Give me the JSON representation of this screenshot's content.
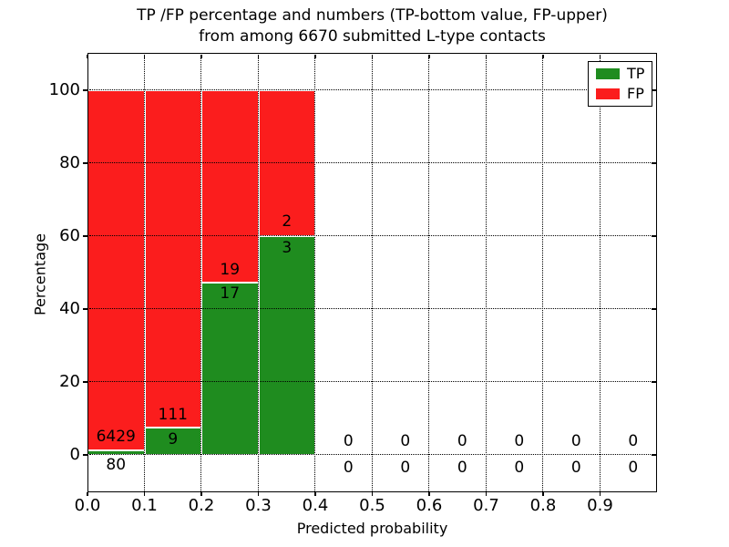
{
  "figure": {
    "title_line1": "TP /FP percentage and numbers (TP-bottom value, FP-upper)",
    "title_line2": "from among 6670 submitted L-type contacts"
  },
  "axes": {
    "xlabel": "Predicted probability",
    "ylabel": "Percentage",
    "x_tick_labels": [
      "0.0",
      "0.1",
      "0.2",
      "0.3",
      "0.4",
      "0.5",
      "0.6",
      "0.7",
      "0.8",
      "0.9"
    ],
    "y_tick_labels": [
      "0",
      "20",
      "40",
      "60",
      "80",
      "100"
    ],
    "y_tick_values": [
      0,
      20,
      40,
      60,
      80,
      100
    ]
  },
  "legend": {
    "items": [
      {
        "label": "TP",
        "color": "#1f8c1f"
      },
      {
        "label": "FP",
        "color": "#fb1d1d"
      }
    ]
  },
  "chart_data": {
    "type": "bar",
    "stacked": true,
    "title": "TP /FP percentage and numbers (TP-bottom value, FP-upper) from among 6670 submitted L-type contacts",
    "xlabel": "Predicted probability",
    "ylabel": "Percentage",
    "xlim": [
      0.0,
      1.0
    ],
    "ylim": [
      -10.25,
      110.25
    ],
    "grid": true,
    "grid_style": "dotted",
    "grid_above_bars": true,
    "legend_position": "upper right",
    "total_submitted": 6670,
    "bin_width": 0.1,
    "series": [
      {
        "name": "TP",
        "color": "#1f8c1f",
        "position": "bottom"
      },
      {
        "name": "FP",
        "color": "#fb1d1d",
        "position": "top"
      }
    ],
    "bins": [
      {
        "x0": 0.0,
        "x1": 0.1,
        "tp_count": 80,
        "fp_count": 6429,
        "tp_pct": 1.23,
        "fp_pct": 98.77,
        "has_bar": true,
        "fp_label_y": 5.0,
        "tp_label_y": -2.8,
        "label_dx": 0
      },
      {
        "x0": 0.1,
        "x1": 0.2,
        "tp_count": 9,
        "fp_count": 111,
        "tp_pct": 7.5,
        "fp_pct": 92.5,
        "has_bar": true,
        "fp_label_y": 11.0,
        "tp_label_y": 4.3,
        "label_dx": 0
      },
      {
        "x0": 0.2,
        "x1": 0.3,
        "tp_count": 17,
        "fp_count": 19,
        "tp_pct": 47.2,
        "fp_pct": 52.8,
        "has_bar": true,
        "fp_label_y": 50.7,
        "tp_label_y": 44.2,
        "label_dx": 0
      },
      {
        "x0": 0.3,
        "x1": 0.4,
        "tp_count": 3,
        "fp_count": 2,
        "tp_pct": 60.0,
        "fp_pct": 40.0,
        "has_bar": true,
        "fp_label_y": 64.0,
        "tp_label_y": 56.8,
        "label_dx": 0
      },
      {
        "x0": 0.4,
        "x1": 0.5,
        "tp_count": 0,
        "fp_count": 0,
        "tp_pct": 0,
        "fp_pct": 0,
        "has_bar": false,
        "fp_label_y": 3.75,
        "tp_label_y": -3.5,
        "label_dx": 5
      },
      {
        "x0": 0.5,
        "x1": 0.6,
        "tp_count": 0,
        "fp_count": 0,
        "tp_pct": 0,
        "fp_pct": 0,
        "has_bar": false,
        "fp_label_y": 3.75,
        "tp_label_y": -3.5,
        "label_dx": 5
      },
      {
        "x0": 0.6,
        "x1": 0.7,
        "tp_count": 0,
        "fp_count": 0,
        "tp_pct": 0,
        "fp_pct": 0,
        "has_bar": false,
        "fp_label_y": 3.75,
        "tp_label_y": -3.5,
        "label_dx": 5
      },
      {
        "x0": 0.7,
        "x1": 0.8,
        "tp_count": 0,
        "fp_count": 0,
        "tp_pct": 0,
        "fp_pct": 0,
        "has_bar": false,
        "fp_label_y": 3.75,
        "tp_label_y": -3.5,
        "label_dx": 5
      },
      {
        "x0": 0.8,
        "x1": 0.9,
        "tp_count": 0,
        "fp_count": 0,
        "tp_pct": 0,
        "fp_pct": 0,
        "has_bar": false,
        "fp_label_y": 3.75,
        "tp_label_y": -3.5,
        "label_dx": 5
      },
      {
        "x0": 0.9,
        "x1": 1.0,
        "tp_count": 0,
        "fp_count": 0,
        "tp_pct": 0,
        "fp_pct": 0,
        "has_bar": false,
        "fp_label_y": 3.75,
        "tp_label_y": -3.5,
        "label_dx": 5
      }
    ]
  }
}
